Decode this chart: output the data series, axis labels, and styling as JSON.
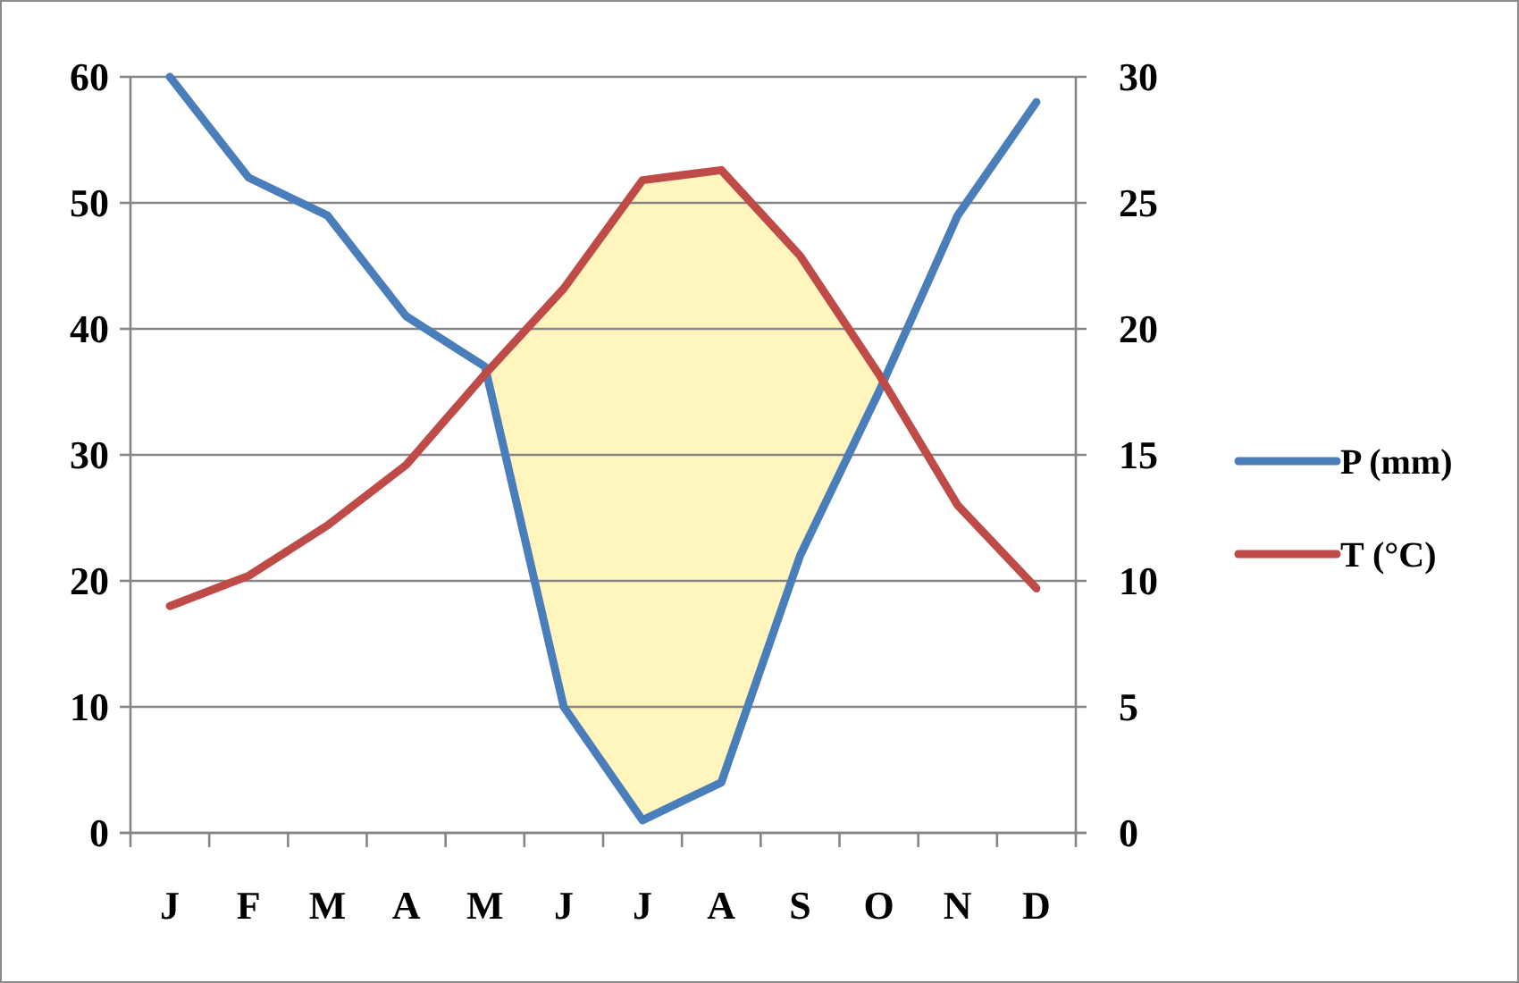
{
  "chart_data": {
    "type": "line",
    "categories": [
      "J",
      "F",
      "M",
      "A",
      "M",
      "J",
      "J",
      "A",
      "S",
      "O",
      "N",
      "D"
    ],
    "series": [
      {
        "name": "P (mm)",
        "color": "#4a7ebb",
        "values": [
          60,
          52,
          49,
          41,
          37,
          10,
          1,
          4,
          22,
          35,
          49,
          58
        ]
      },
      {
        "name": "T (°C)",
        "color": "#be4b48",
        "axis": "y2",
        "values": [
          9,
          10.2,
          12.2,
          14.6,
          18.2,
          21.6,
          25.9,
          26.3,
          22.9,
          18.2,
          13,
          9.7
        ]
      }
    ],
    "ylim": [
      0,
      60
    ],
    "yticks": [
      0,
      10,
      20,
      30,
      40,
      50,
      60
    ],
    "y2lim": [
      0,
      30
    ],
    "y2ticks": [
      0,
      5,
      10,
      15,
      20,
      25,
      30
    ],
    "grid": "y",
    "legend": "right",
    "line_style": "solid",
    "marker": "none"
  }
}
